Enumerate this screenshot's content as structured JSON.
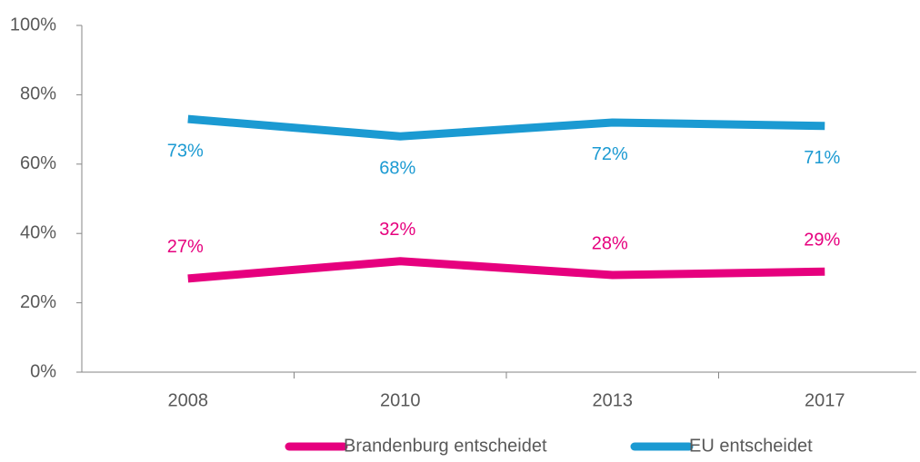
{
  "chart_data": {
    "type": "line",
    "categories": [
      "2008",
      "2010",
      "2013",
      "2017"
    ],
    "series": [
      {
        "name": "Brandenburg entscheidet",
        "color": "#e6007e",
        "values": [
          27,
          32,
          28,
          29
        ],
        "value_labels": [
          "27%",
          "32%",
          "28%",
          "29%"
        ]
      },
      {
        "name": "EU entscheidet",
        "color": "#1b9ad2",
        "values": [
          73,
          68,
          72,
          71
        ],
        "value_labels": [
          "73%",
          "68%",
          "72%",
          "71%"
        ]
      }
    ],
    "ylim": [
      0,
      100
    ],
    "yticks": [
      {
        "value": 0,
        "label": "0%"
      },
      {
        "value": 20,
        "label": "20%"
      },
      {
        "value": 40,
        "label": "40%"
      },
      {
        "value": 60,
        "label": "60%"
      },
      {
        "value": 80,
        "label": "80%"
      },
      {
        "value": 100,
        "label": "100%"
      }
    ],
    "legend": "bottom"
  }
}
